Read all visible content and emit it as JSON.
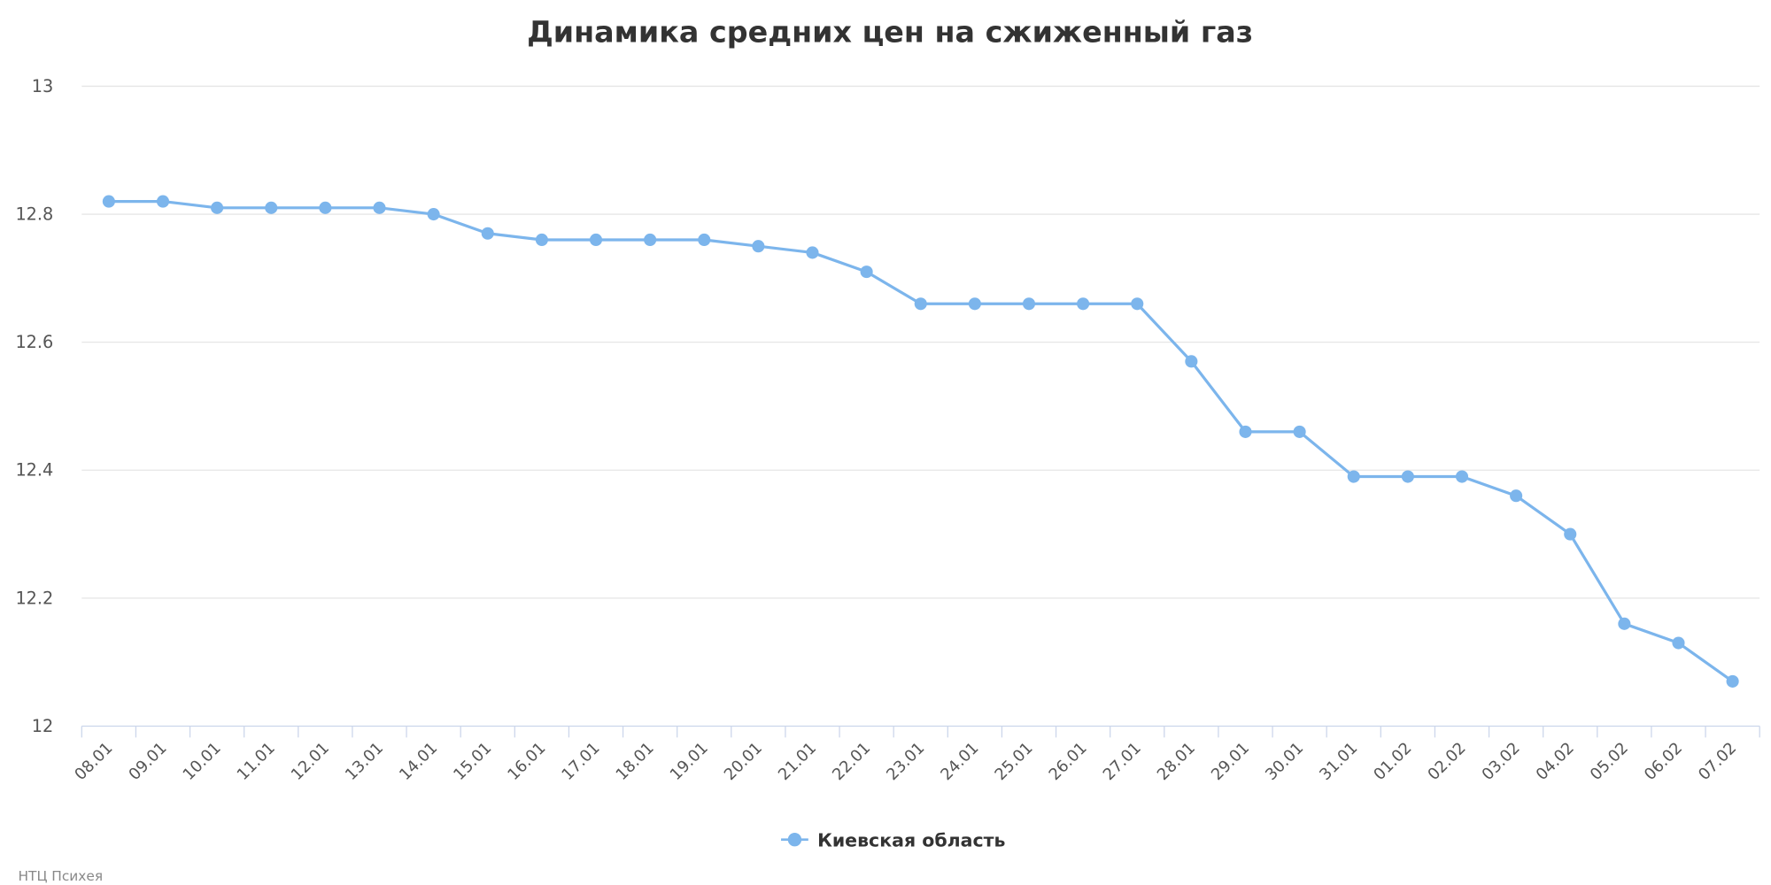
{
  "chart_data": {
    "type": "line",
    "title": "Динамика средних цен на сжиженный газ",
    "xlabel": "",
    "ylabel": "",
    "ylim": [
      12,
      13
    ],
    "yticks": [
      "12",
      "12.2",
      "12.4",
      "12.6",
      "12.8",
      "13"
    ],
    "grid": true,
    "legend_position": "bottom-center",
    "categories": [
      "08.01",
      "09.01",
      "10.01",
      "11.01",
      "12.01",
      "13.01",
      "14.01",
      "15.01",
      "16.01",
      "17.01",
      "18.01",
      "19.01",
      "20.01",
      "21.01",
      "22.01",
      "23.01",
      "24.01",
      "25.01",
      "26.01",
      "27.01",
      "28.01",
      "29.01",
      "30.01",
      "31.01",
      "01.02",
      "02.02",
      "03.02",
      "04.02",
      "05.02",
      "06.02",
      "07.02"
    ],
    "series": [
      {
        "name": "Киевская область",
        "color": "#7cb5ec",
        "values": [
          12.82,
          12.82,
          12.81,
          12.81,
          12.81,
          12.81,
          12.8,
          12.77,
          12.76,
          12.76,
          12.76,
          12.76,
          12.75,
          12.74,
          12.71,
          12.66,
          12.66,
          12.66,
          12.66,
          12.66,
          12.57,
          12.46,
          12.46,
          12.39,
          12.39,
          12.39,
          12.36,
          12.3,
          12.16,
          12.13,
          12.07
        ]
      }
    ]
  },
  "credit": "НТЦ Психея"
}
